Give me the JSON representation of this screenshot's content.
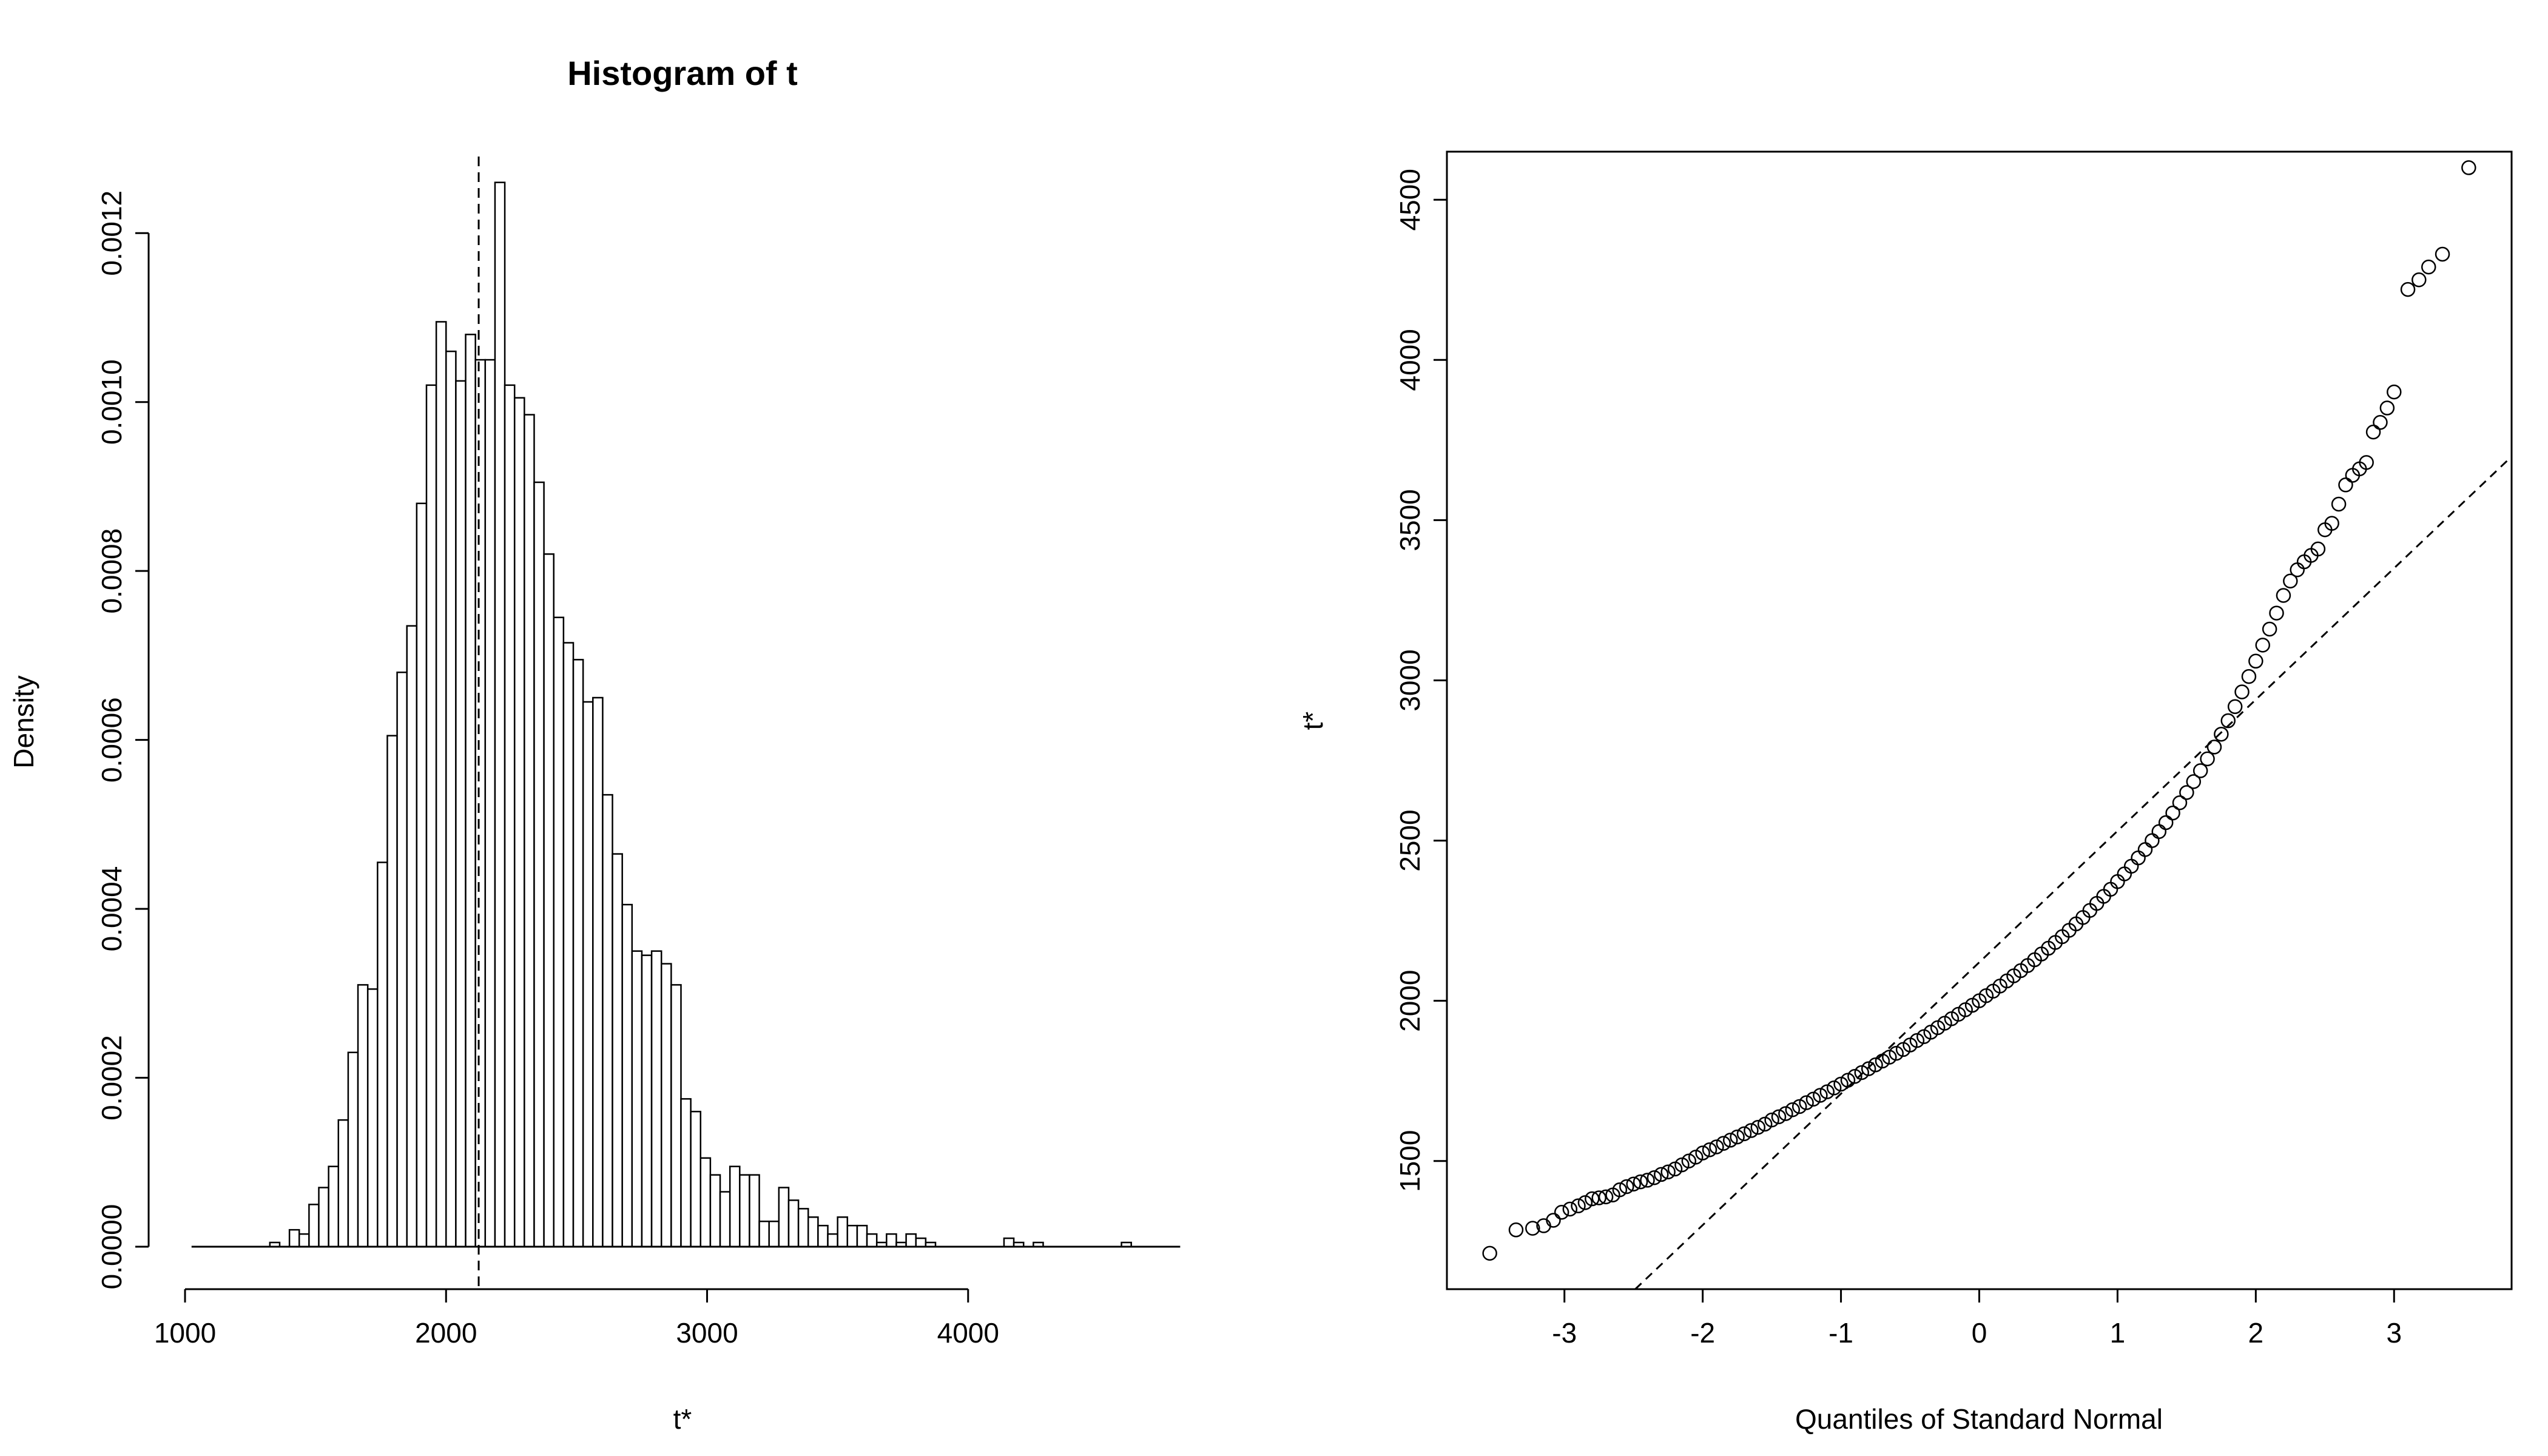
{
  "chart_data": [
    {
      "type": "bar",
      "subtype": "histogram",
      "title": "Histogram of t",
      "xlabel": "t*",
      "ylabel": "Density",
      "xlim": [
        1000,
        4800
      ],
      "ylim": [
        0,
        0.0013
      ],
      "x_ticks": [
        "1000",
        "2000",
        "3000",
        "4000"
      ],
      "y_ticks": [
        "0.0000",
        "0.0002",
        "0.0004",
        "0.0006",
        "0.0008",
        "0.0010",
        "0.0012"
      ],
      "bin_width": 37.5,
      "bin_start": 1025,
      "values": [
        0,
        0,
        0,
        0,
        0,
        0,
        0,
        0,
        5e-06,
        0,
        2e-05,
        1.5e-05,
        5e-05,
        7e-05,
        9.5e-05,
        0.00015,
        0.00023,
        0.00031,
        0.000305,
        0.000455,
        0.000605,
        0.00068,
        0.000735,
        0.00088,
        0.00102,
        0.001095,
        0.00106,
        0.001025,
        0.00108,
        0.00105,
        0.00105,
        0.00126,
        0.00102,
        0.001005,
        0.000985,
        0.000905,
        0.00082,
        0.000745,
        0.000715,
        0.000695,
        0.000645,
        0.00065,
        0.000535,
        0.000465,
        0.000405,
        0.00035,
        0.000345,
        0.00035,
        0.000335,
        0.00031,
        0.000175,
        0.00016,
        0.000105,
        8.5e-05,
        6.5e-05,
        9.5e-05,
        8.5e-05,
        8.5e-05,
        3e-05,
        3e-05,
        7e-05,
        5.5e-05,
        4.5e-05,
        3.5e-05,
        2.5e-05,
        1.5e-05,
        3.5e-05,
        2.5e-05,
        2.5e-05,
        1.5e-05,
        5e-06,
        1.5e-05,
        5e-06,
        1.5e-05,
        1e-05,
        5e-06,
        0,
        0,
        0,
        0,
        0,
        0,
        0,
        1e-05,
        5e-06,
        0,
        5e-06,
        0,
        0,
        0,
        0,
        0,
        0,
        0,
        0,
        5e-06,
        0,
        0,
        0,
        0,
        0
      ],
      "vline": 2125,
      "vline_style": "dashed"
    },
    {
      "type": "scatter",
      "subtype": "normal-qq",
      "xlabel": "Quantiles of Standard Normal",
      "ylabel": "t*",
      "xlim": [
        -3.85,
        3.85
      ],
      "ylim": [
        1100,
        4650
      ],
      "x_ticks": [
        "-3",
        "-2",
        "-1",
        "0",
        "1",
        "2",
        "3"
      ],
      "y_ticks": [
        "1500",
        "2000",
        "2500",
        "3000",
        "3500",
        "4000",
        "4500"
      ],
      "points": [
        [
          -3.54,
          1212
        ],
        [
          -3.35,
          1285
        ],
        [
          -3.23,
          1290
        ],
        [
          -3.15,
          1298
        ],
        [
          -3.08,
          1315
        ],
        [
          -3.02,
          1340
        ],
        [
          -2.96,
          1350
        ],
        [
          -2.9,
          1360
        ],
        [
          -2.85,
          1370
        ],
        [
          -2.8,
          1382
        ],
        [
          -2.75,
          1385
        ],
        [
          -2.7,
          1388
        ],
        [
          -2.65,
          1394
        ],
        [
          -2.6,
          1410
        ],
        [
          -2.55,
          1420
        ],
        [
          -2.5,
          1428
        ],
        [
          -2.45,
          1435
        ],
        [
          -2.4,
          1440
        ],
        [
          -2.35,
          1448
        ],
        [
          -2.3,
          1458
        ],
        [
          -2.25,
          1466
        ],
        [
          -2.2,
          1475
        ],
        [
          -2.15,
          1488
        ],
        [
          -2.1,
          1500
        ],
        [
          -2.05,
          1512
        ],
        [
          -2.0,
          1525
        ],
        [
          -1.95,
          1535
        ],
        [
          -1.9,
          1544
        ],
        [
          -1.85,
          1555
        ],
        [
          -1.8,
          1565
        ],
        [
          -1.75,
          1575
        ],
        [
          -1.7,
          1585
        ],
        [
          -1.65,
          1595
        ],
        [
          -1.6,
          1605
        ],
        [
          -1.55,
          1615
        ],
        [
          -1.5,
          1628
        ],
        [
          -1.45,
          1638
        ],
        [
          -1.4,
          1648
        ],
        [
          -1.35,
          1660
        ],
        [
          -1.3,
          1670
        ],
        [
          -1.25,
          1682
        ],
        [
          -1.2,
          1693
        ],
        [
          -1.15,
          1705
        ],
        [
          -1.1,
          1716
        ],
        [
          -1.05,
          1728
        ],
        [
          -1.0,
          1740
        ],
        [
          -0.95,
          1752
        ],
        [
          -0.9,
          1764
        ],
        [
          -0.85,
          1776
        ],
        [
          -0.8,
          1788
        ],
        [
          -0.75,
          1800
        ],
        [
          -0.7,
          1812
        ],
        [
          -0.65,
          1824
        ],
        [
          -0.6,
          1836
        ],
        [
          -0.55,
          1848
        ],
        [
          -0.5,
          1862
        ],
        [
          -0.45,
          1876
        ],
        [
          -0.4,
          1888
        ],
        [
          -0.35,
          1902
        ],
        [
          -0.3,
          1916
        ],
        [
          -0.25,
          1930
        ],
        [
          -0.2,
          1944
        ],
        [
          -0.15,
          1958
        ],
        [
          -0.1,
          1972
        ],
        [
          -0.05,
          1986
        ],
        [
          0.0,
          2000
        ],
        [
          0.05,
          2016
        ],
        [
          0.1,
          2030
        ],
        [
          0.15,
          2046
        ],
        [
          0.2,
          2062
        ],
        [
          0.25,
          2078
        ],
        [
          0.3,
          2094
        ],
        [
          0.35,
          2110
        ],
        [
          0.4,
          2128
        ],
        [
          0.45,
          2146
        ],
        [
          0.5,
          2164
        ],
        [
          0.55,
          2182
        ],
        [
          0.6,
          2200
        ],
        [
          0.65,
          2220
        ],
        [
          0.7,
          2240
        ],
        [
          0.75,
          2260
        ],
        [
          0.8,
          2282
        ],
        [
          0.85,
          2304
        ],
        [
          0.9,
          2326
        ],
        [
          0.95,
          2348
        ],
        [
          1.0,
          2372
        ],
        [
          1.05,
          2396
        ],
        [
          1.1,
          2420
        ],
        [
          1.15,
          2446
        ],
        [
          1.2,
          2472
        ],
        [
          1.25,
          2500
        ],
        [
          1.3,
          2528
        ],
        [
          1.35,
          2556
        ],
        [
          1.4,
          2586
        ],
        [
          1.45,
          2618
        ],
        [
          1.5,
          2650
        ],
        [
          1.55,
          2684
        ],
        [
          1.6,
          2718
        ],
        [
          1.65,
          2755
        ],
        [
          1.7,
          2792
        ],
        [
          1.75,
          2832
        ],
        [
          1.8,
          2874
        ],
        [
          1.85,
          2918
        ],
        [
          1.9,
          2964
        ],
        [
          1.95,
          3012
        ],
        [
          2.0,
          3060
        ],
        [
          2.05,
          3110
        ],
        [
          2.1,
          3160
        ],
        [
          2.15,
          3210
        ],
        [
          2.2,
          3265
        ],
        [
          2.25,
          3310
        ],
        [
          2.3,
          3345
        ],
        [
          2.35,
          3370
        ],
        [
          2.4,
          3390
        ],
        [
          2.45,
          3410
        ],
        [
          2.5,
          3470
        ],
        [
          2.55,
          3490
        ],
        [
          2.6,
          3550
        ],
        [
          2.65,
          3610
        ],
        [
          2.7,
          3640
        ],
        [
          2.75,
          3660
        ],
        [
          2.8,
          3680
        ],
        [
          2.85,
          3775
        ],
        [
          2.9,
          3805
        ],
        [
          2.95,
          3850
        ],
        [
          3.0,
          3900
        ],
        [
          3.1,
          4220
        ],
        [
          3.18,
          4250
        ],
        [
          3.25,
          4290
        ],
        [
          3.35,
          4330
        ],
        [
          3.54,
          4600
        ]
      ],
      "qqline": {
        "intercept": 2120,
        "slope": 410,
        "style": "dashed"
      }
    }
  ]
}
